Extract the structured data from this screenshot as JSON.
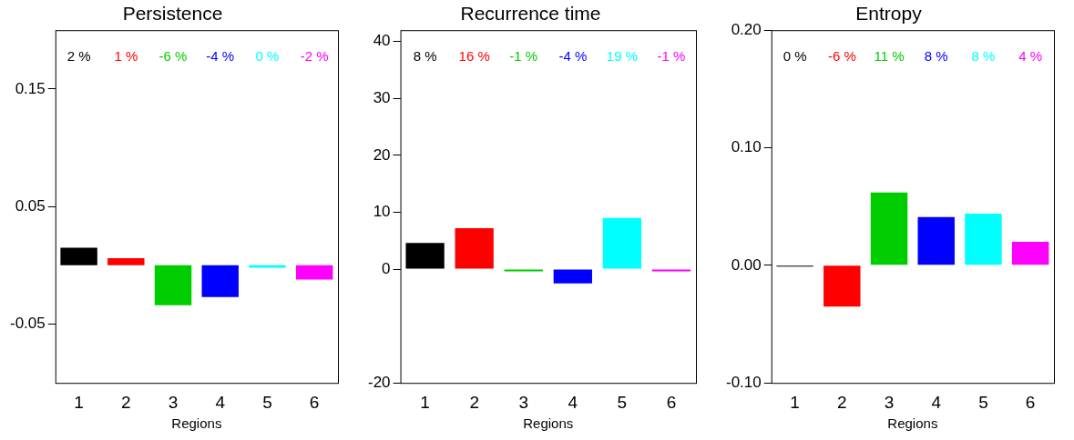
{
  "chart_data": [
    {
      "type": "bar",
      "title": "Persistence",
      "x_label": "Regions",
      "categories": [
        "1",
        "2",
        "3",
        "4",
        "5",
        "6"
      ],
      "values": [
        0.015,
        0.006,
        -0.034,
        -0.027,
        -0.002,
        -0.012
      ],
      "colors": [
        "#000000",
        "#ff0000",
        "#00cd00",
        "#0000ff",
        "#00ffff",
        "#ff00ff"
      ],
      "annotations": [
        "2 %",
        "1 %",
        "-6 %",
        "-4 %",
        "0 %",
        "-2 %"
      ],
      "ylim": [
        -0.1,
        0.2
      ],
      "yticks": [
        -0.05,
        0.05,
        0.15
      ],
      "grid": false
    },
    {
      "type": "bar",
      "title": "Recurrence time",
      "x_label": "Regions",
      "categories": [
        "1",
        "2",
        "3",
        "4",
        "5",
        "6"
      ],
      "values": [
        4.6,
        7.2,
        -0.4,
        -2.5,
        9.0,
        -0.4
      ],
      "colors": [
        "#000000",
        "#ff0000",
        "#00cd00",
        "#0000ff",
        "#00ffff",
        "#ff00ff"
      ],
      "annotations": [
        "8 %",
        "16 %",
        "-1 %",
        "-4 %",
        "19 %",
        "-1 %"
      ],
      "ylim": [
        -20,
        42
      ],
      "yticks": [
        -20,
        0,
        10,
        20,
        30,
        40
      ],
      "grid": false
    },
    {
      "type": "bar",
      "title": "Entropy",
      "x_label": "Regions",
      "categories": [
        "1",
        "2",
        "3",
        "4",
        "5",
        "6"
      ],
      "values": [
        -0.001,
        -0.035,
        0.062,
        0.041,
        0.044,
        0.02
      ],
      "colors": [
        "#000000",
        "#ff0000",
        "#00cd00",
        "#0000ff",
        "#00ffff",
        "#ff00ff"
      ],
      "annotations": [
        "0 %",
        "-6 %",
        "11 %",
        "8 %",
        "8 %",
        "4 %"
      ],
      "ylim": [
        -0.1,
        0.2
      ],
      "yticks": [
        {
          "value": -0.1,
          "label": "-0.10"
        },
        {
          "value": 0,
          "label": "0.00"
        },
        {
          "value": 0.1,
          "label": "0.10"
        },
        {
          "value": 0.2,
          "label": "0.20"
        }
      ],
      "grid": false
    }
  ]
}
